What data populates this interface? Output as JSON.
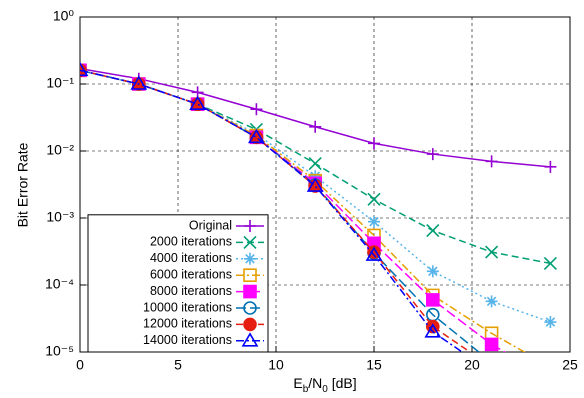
{
  "chart_data": {
    "type": "line",
    "xlabel": [
      "E",
      "b",
      "/N",
      "0",
      " [dB]"
    ],
    "ylabel": "Bit Error Rate",
    "x": [
      0,
      3,
      6,
      9,
      12,
      15,
      18,
      21,
      24
    ],
    "xlim": [
      0,
      25
    ],
    "xticks": [
      0,
      5,
      10,
      15,
      20,
      25
    ],
    "ylim": [
      1e-05,
      1
    ],
    "log_y": true,
    "grid": true,
    "legend": "lower left",
    "yticks": [
      {
        "value": 1e-05,
        "label": "10⁻⁵"
      },
      {
        "value": 0.0001,
        "label": "10⁻⁴"
      },
      {
        "value": 0.001,
        "label": "10⁻³"
      },
      {
        "value": 0.01,
        "label": "10⁻²"
      },
      {
        "value": 0.1,
        "label": "10⁻¹"
      },
      {
        "value": 1,
        "label": "10⁰"
      }
    ],
    "series": [
      {
        "name": "Original",
        "color": "#9400d3",
        "marker": "plus",
        "dash": "solid",
        "values": [
          0.17,
          0.12,
          0.075,
          0.042,
          0.023,
          0.013,
          0.009,
          0.007,
          0.0058
        ]
      },
      {
        "name": "2000 iterations",
        "color": "#009e73",
        "marker": "cross",
        "dash": "dashed",
        "values": [
          0.16,
          0.1,
          0.05,
          0.021,
          0.0065,
          0.0019,
          0.00065,
          0.00031,
          0.00021
        ]
      },
      {
        "name": "4000 iterations",
        "color": "#56b4e9",
        "marker": "star",
        "dash": "dotted",
        "values": [
          0.16,
          0.1,
          0.05,
          0.018,
          0.0042,
          0.00088,
          0.00016,
          5.7e-05,
          2.8e-05
        ]
      },
      {
        "name": "6000 iterations",
        "color": "#e69f00",
        "marker": "square",
        "dash": "dashdot",
        "values": [
          0.16,
          0.1,
          0.05,
          0.017,
          0.0036,
          0.00055,
          7e-05,
          1.9e-05,
          6e-06
        ]
      },
      {
        "name": "8000 iterations",
        "color": "#ff00ff",
        "marker": "filled-square",
        "dash": "longdash",
        "values": [
          0.16,
          0.1,
          0.05,
          0.016,
          0.0033,
          0.00042,
          6e-05,
          1.3e-05,
          4e-06
        ]
      },
      {
        "name": "10000 iterations",
        "color": "#0072b2",
        "marker": "circle",
        "dash": "longdash",
        "values": [
          0.16,
          0.1,
          0.05,
          0.016,
          0.0031,
          0.0003,
          3.6e-05,
          7e-06,
          null
        ]
      },
      {
        "name": "12000 iterations",
        "color": "#e51e10",
        "marker": "filled-circle",
        "dash": "dashed",
        "values": [
          0.16,
          0.1,
          0.05,
          0.016,
          0.003,
          0.00031,
          2.4e-05,
          6e-06,
          null
        ]
      },
      {
        "name": "14000 iterations",
        "color": "#0000ff",
        "marker": "triangle",
        "dash": "dashdot",
        "values": [
          0.16,
          0.1,
          0.05,
          0.016,
          0.003,
          0.00028,
          2e-05,
          5e-06,
          null
        ]
      }
    ]
  }
}
